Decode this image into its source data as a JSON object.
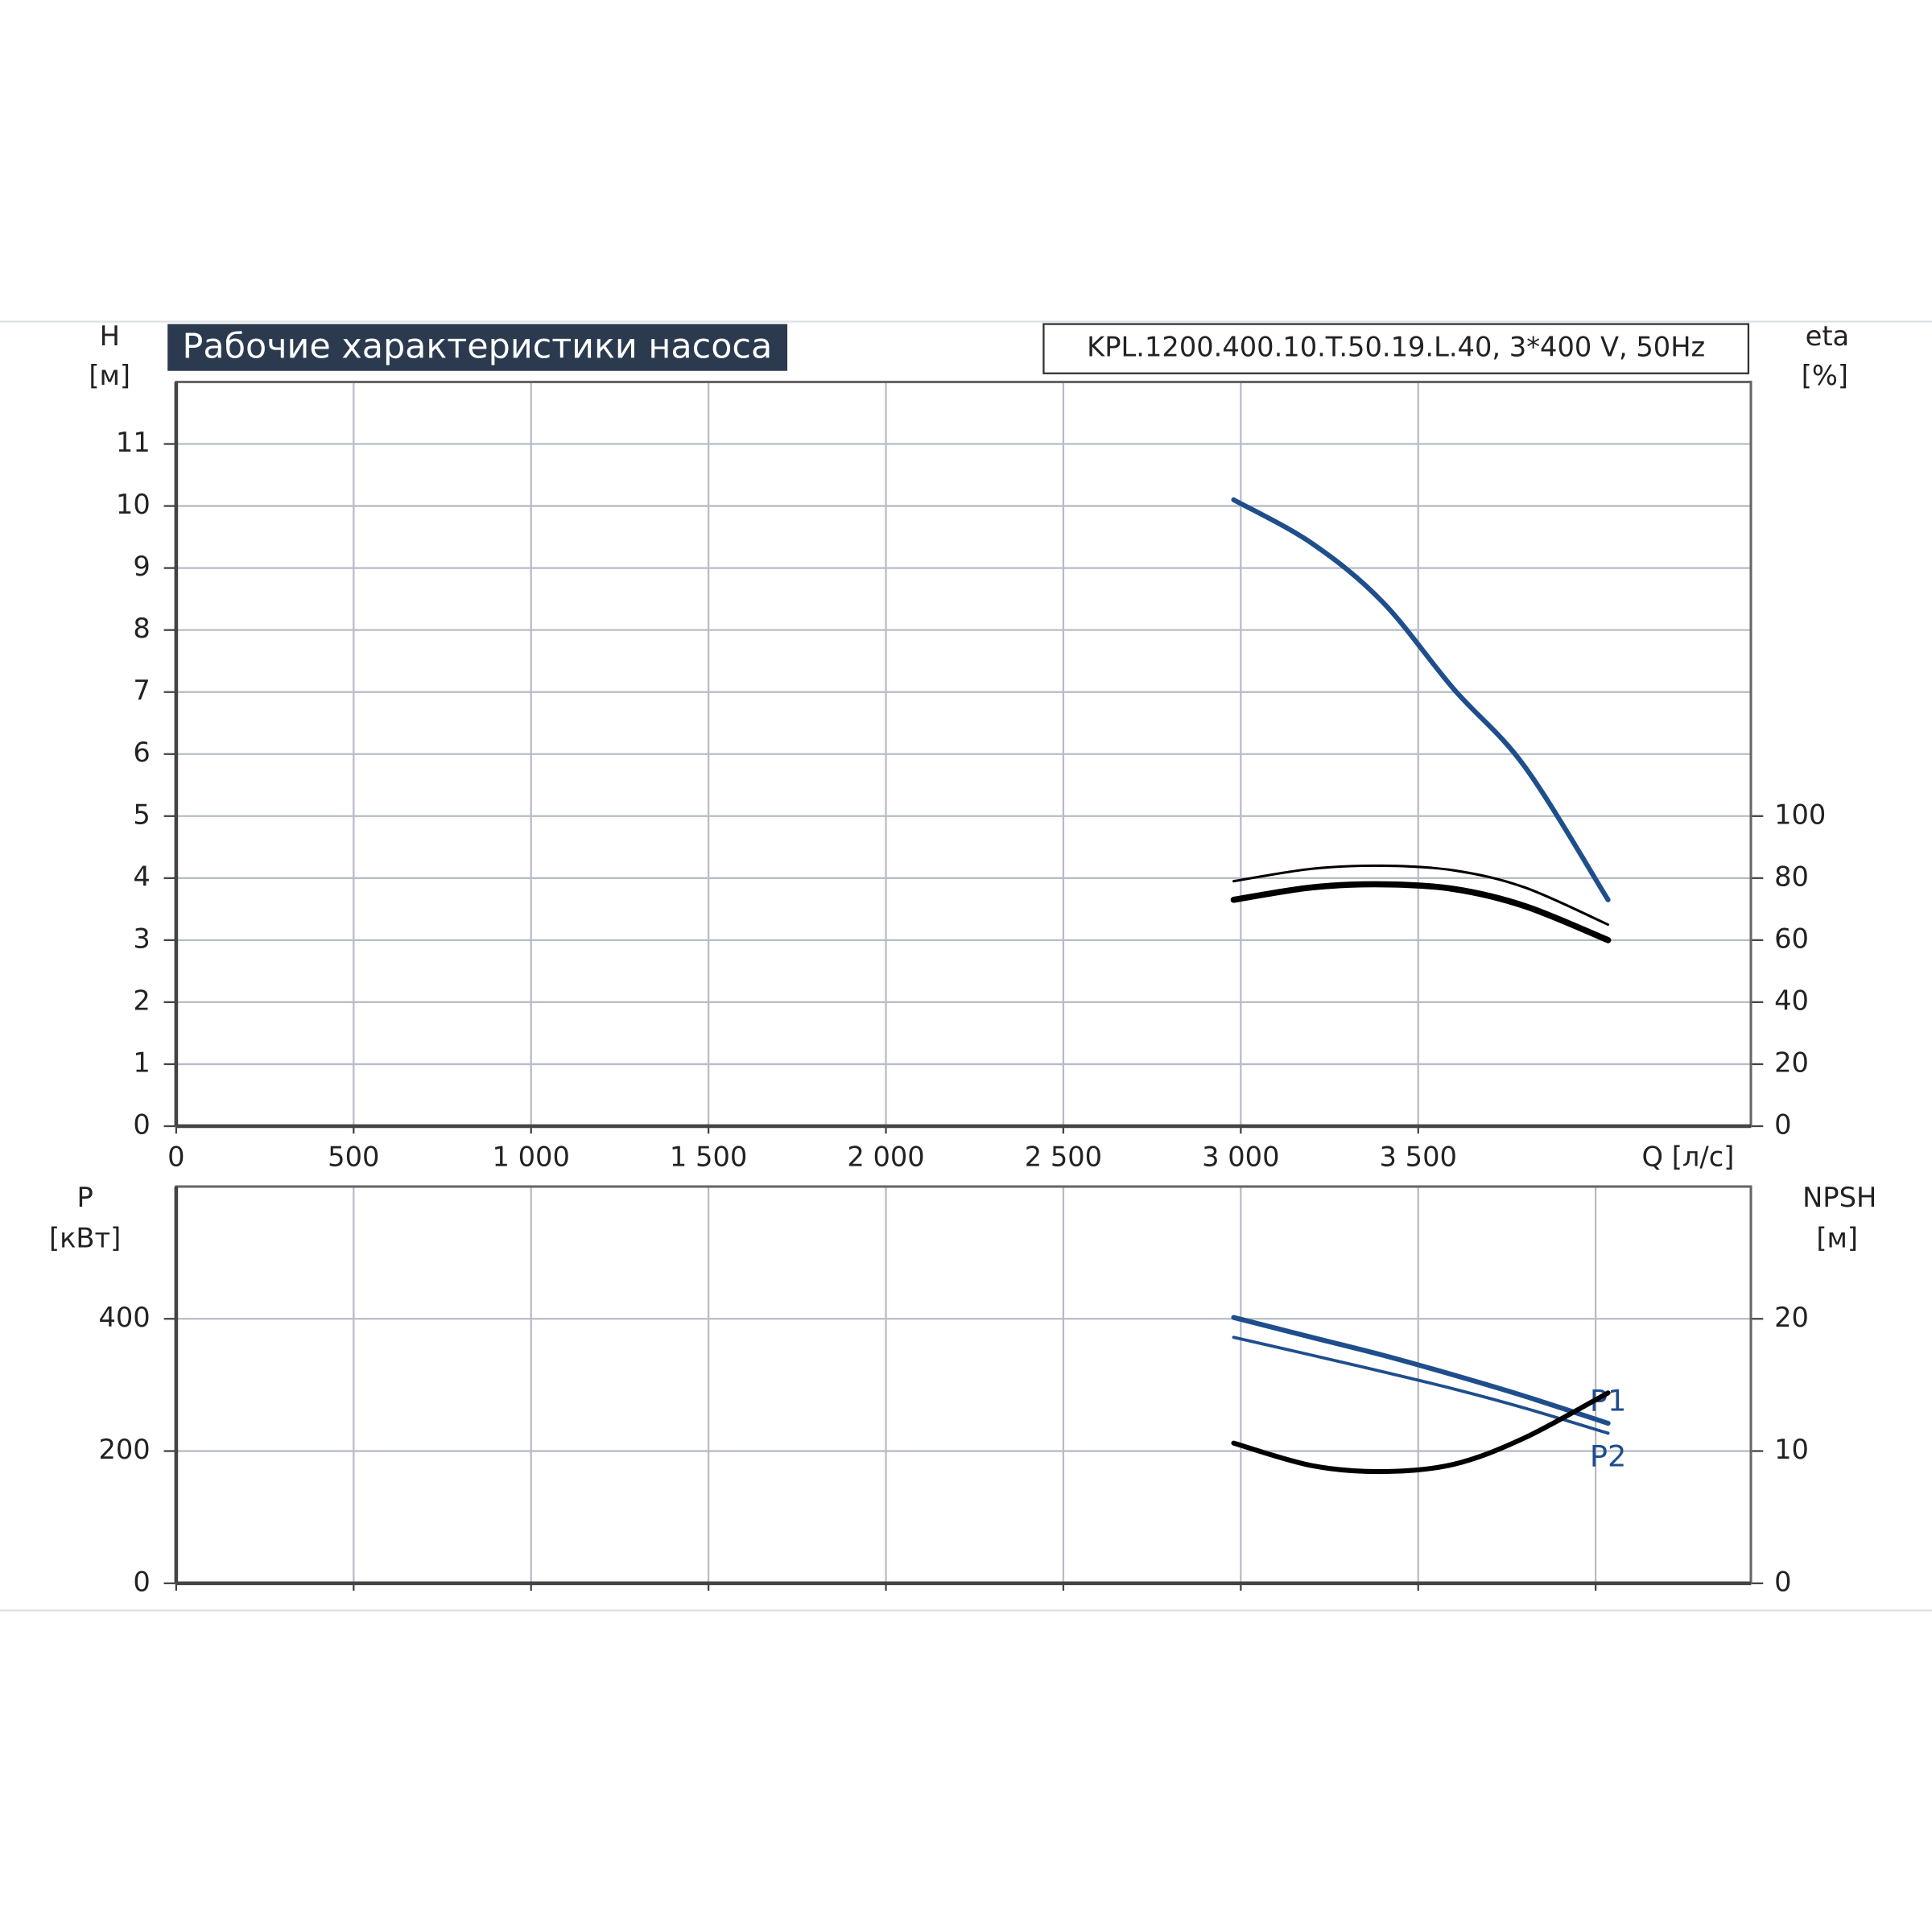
{
  "chart_data": [
    {
      "type": "line",
      "title": "Рабочие характеристики насоса",
      "subtitle": "KPL.1200.400.10.T.50.19.L.40, 3*400 V, 50Hz",
      "ylabel": "H",
      "yunit": "[м]",
      "y2label": "eta",
      "y2unit": "[%]",
      "xlabel": "Q [л/с]",
      "x": [
        2980,
        3200,
        3400,
        3600,
        3800,
        4035
      ],
      "series": [
        {
          "color": "#1f4e8c",
          "line_width": 4,
          "values": [
            10.1,
            9.4,
            8.45,
            7.05,
            5.8,
            3.65
          ]
        },
        {
          "color": "#000000",
          "line_width": 5,
          "axis": "y2",
          "values": [
            73,
            77,
            78,
            76.5,
            71,
            60
          ]
        },
        {
          "color": "#000000",
          "line_width": 2,
          "axis": "y2",
          "values": [
            79,
            83,
            84,
            82.5,
            77,
            65
          ]
        }
      ],
      "xlim": [
        0,
        4437.5
      ],
      "xticks": [
        0,
        500,
        {
          "value": 1000,
          "label": "1 000"
        },
        {
          "value": 1500,
          "label": "1 500"
        },
        {
          "value": 2000,
          "label": "2 000"
        },
        {
          "value": 2500,
          "label": "2 500"
        },
        {
          "value": 3000,
          "label": "3 000"
        },
        {
          "value": 3500,
          "label": "3 500"
        }
      ],
      "ylim": [
        0,
        12
      ],
      "yticks": [
        0,
        1,
        2,
        3,
        4,
        5,
        6,
        7,
        8,
        9,
        10,
        11
      ],
      "y2lim": [
        0,
        240
      ],
      "y2ticks": [
        0,
        20,
        40,
        60,
        80,
        100
      ],
      "grid": true
    },
    {
      "type": "line",
      "ylabel": "P",
      "yunit": "[кВт]",
      "y2label": "NPSH",
      "y2unit": "[м]",
      "x": [
        2980,
        3200,
        3400,
        3600,
        3800,
        4035
      ],
      "series": [
        {
          "name": "P1",
          "color": "#1f4e8c",
          "line_width": 4,
          "values": [
            402,
            372,
            345,
            315,
            283,
            242
          ]
        },
        {
          "name": "P2",
          "color": "#1f4e8c",
          "line_width": 2.5,
          "values": [
            372,
            345,
            320,
            294,
            265,
            227
          ]
        },
        {
          "color": "#000000",
          "line_width": 4,
          "axis": "y2",
          "values": [
            10.6,
            8.9,
            8.45,
            9.0,
            11.0,
            14.4
          ]
        }
      ],
      "xlim": [
        0,
        4437.5
      ],
      "xticks": [
        0,
        500,
        1000,
        1500,
        2000,
        2500,
        3000,
        3500,
        4000
      ],
      "ylim": [
        0,
        600
      ],
      "yticks": [
        0,
        200,
        400
      ],
      "y2lim": [
        0,
        30
      ],
      "y2ticks": [
        0,
        10,
        20
      ],
      "grid": true
    }
  ]
}
